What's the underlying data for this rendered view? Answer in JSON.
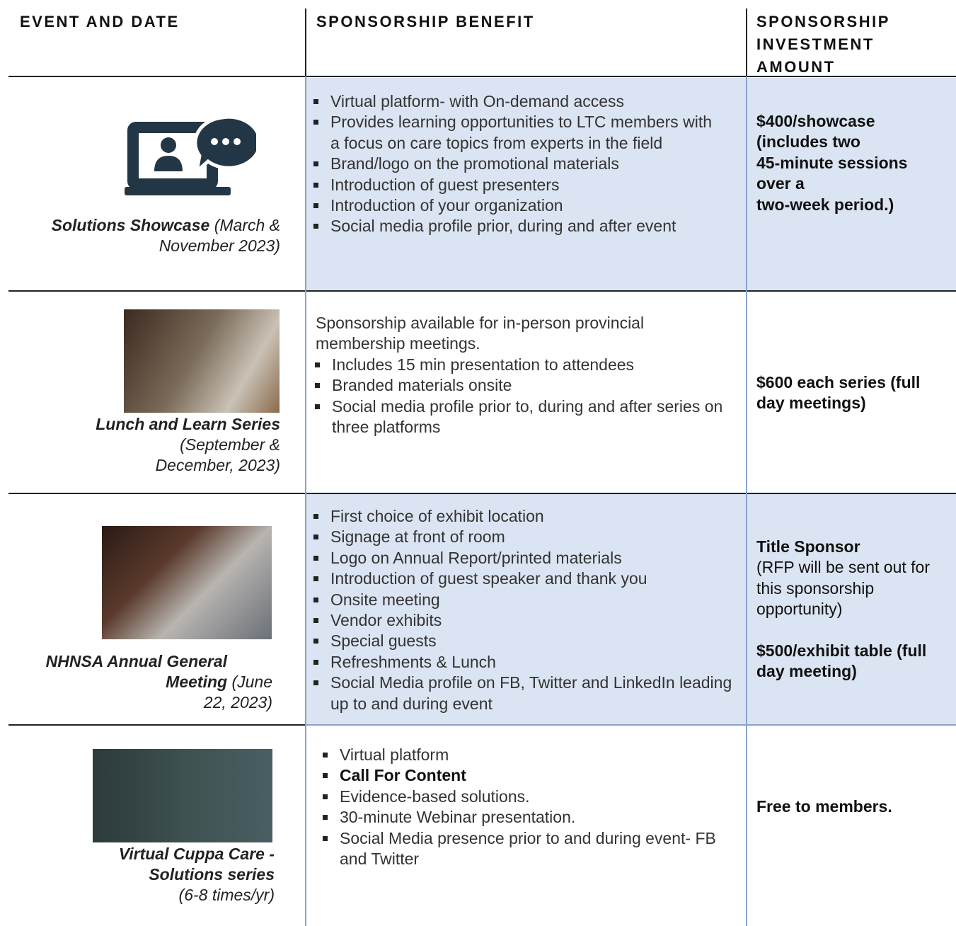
{
  "header": {
    "event": "EVENT AND DATE",
    "benefit": "SPONSORSHIP BENEFIT",
    "investment": "SPONSORSHIP INVESTMENT AMOUNT"
  },
  "rows": [
    {
      "event": "Solutions Showcase",
      "date": "(March & November 2023)",
      "benefits": [
        "Virtual platform- with On-demand access",
        "Provides learning opportunities to LTC members with a focus on care topics from experts in the field",
        "Brand/logo on the promotional materials",
        "Introduction of guest presenters",
        "Introduction of your organization",
        "Social media profile prior, during and after event"
      ],
      "investment": [
        "$400/showcase",
        "(includes two",
        "45-minute sessions",
        "over a",
        "two-week period.)"
      ]
    },
    {
      "event": "Lunch and Learn Series",
      "date": "(September & December, 2023)",
      "intro": "Sponsorship available for in-person provincial membership meetings.",
      "benefits": [
        "Includes 15 min presentation to attendees",
        "Branded materials onsite",
        "Social media profile prior to, during and after series on three platforms"
      ],
      "investment": [
        "$600 each series (full day meetings)"
      ]
    },
    {
      "event": "NHNSA Annual General Meeting",
      "date": "(June 22, 2023)",
      "benefits": [
        "First choice of exhibit location",
        "Signage at front of room",
        "Logo on Annual Report/printed materials",
        "Introduction of guest speaker and thank you",
        "Onsite meeting",
        "Vendor exhibits",
        "Special guests",
        "Refreshments & Lunch",
        "Social Media profile on FB, Twitter and LinkedIn leading up to and during event"
      ],
      "investment": [
        "Title Sponsor",
        "(RFP will be sent out for this sponsorship opportunity)",
        "$500/exhibit table (full day meeting)"
      ]
    },
    {
      "event": "Virtual Cuppa Care - Solutions series",
      "date": "(6-8 times/yr)",
      "benefits": [
        "Virtual platform",
        "Call For Content",
        "Evidence-based solutions.",
        "30-minute Webinar presentation.",
        "Social Media presence prior to and during event- FB and Twitter"
      ],
      "investment": [
        "Free to members."
      ]
    }
  ]
}
